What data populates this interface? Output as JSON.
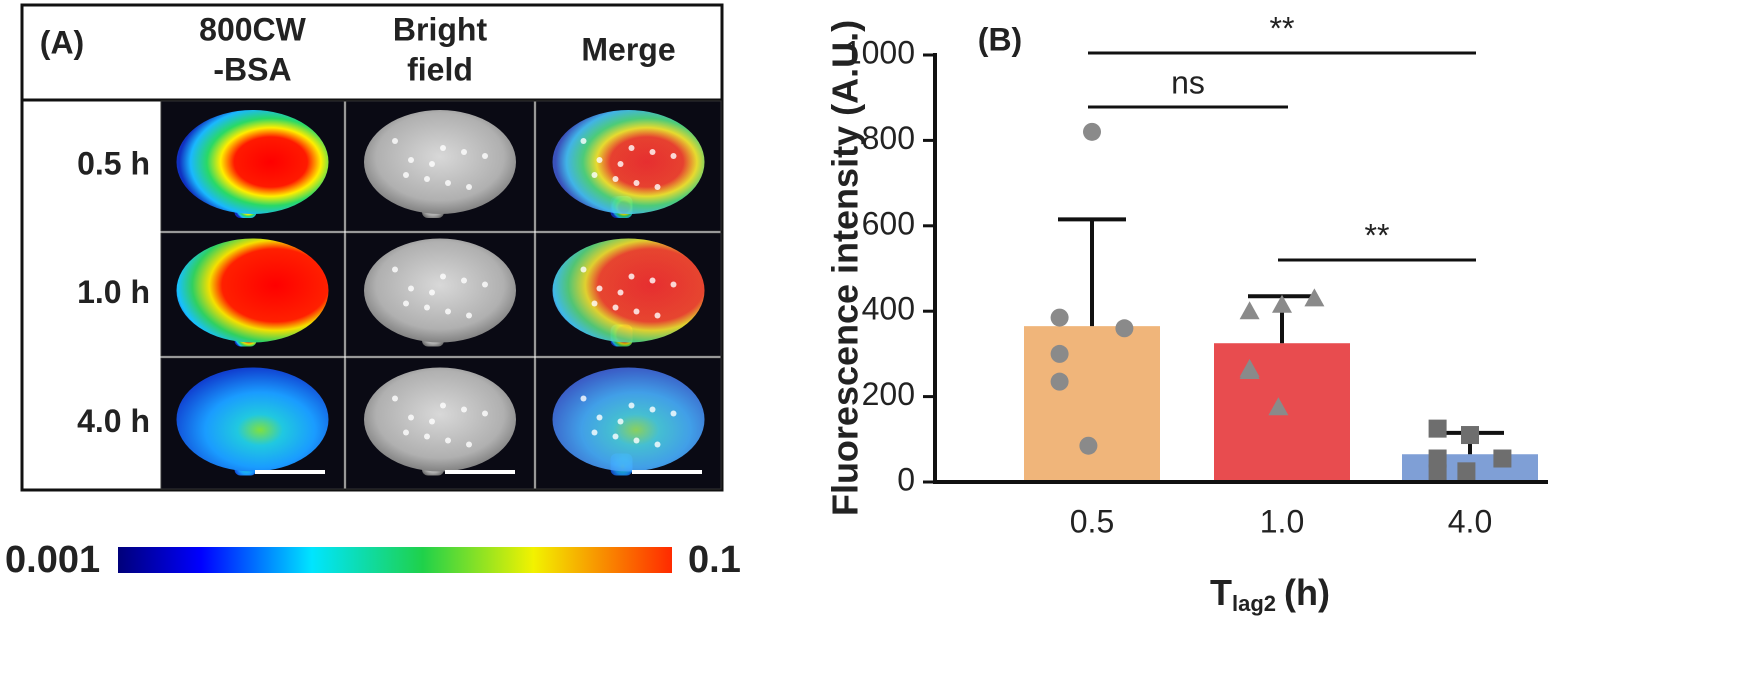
{
  "panel_a": {
    "label": "(A)",
    "headers": [
      [
        "800CW",
        "-BSA"
      ],
      [
        "Bright",
        "field"
      ],
      [
        "Merge"
      ]
    ],
    "rows": [
      "0.5 h",
      "1.0 h",
      "4.0 h"
    ],
    "colorbar": {
      "min_label": "0.001",
      "max_label": "0.1"
    }
  },
  "chart_data": {
    "type": "bar",
    "panel_label": "(B)",
    "y_label": "Fluorescence intensity (A.U.)",
    "x_label": {
      "main": "T",
      "sub": "lag2",
      "unit": "(h)"
    },
    "categories": [
      "0.5",
      "1.0",
      "4.0"
    ],
    "values": [
      365,
      325,
      65
    ],
    "errors": [
      250,
      110,
      50
    ],
    "colors": [
      "#f0b57a",
      "#e84c4f",
      "#7f9fd6"
    ],
    "points": [
      [
        820,
        385,
        360,
        300,
        235,
        85
      ],
      [
        415,
        400,
        430,
        265,
        260,
        175
      ],
      [
        110,
        125,
        55,
        55,
        20,
        25
      ]
    ],
    "markers": [
      "circle",
      "triangle",
      "square"
    ],
    "point_colors": [
      "#8a8a8a",
      "#8a8a8a",
      "#6e6e6e"
    ],
    "ylim": [
      0,
      1000
    ],
    "yticks": [
      0,
      200,
      400,
      600,
      800,
      1000
    ],
    "comparisons": [
      {
        "pair": [
          0,
          2
        ],
        "label": "**"
      },
      {
        "pair": [
          0,
          1
        ],
        "label": "ns"
      },
      {
        "pair": [
          1,
          2
        ],
        "label": "**"
      }
    ]
  }
}
